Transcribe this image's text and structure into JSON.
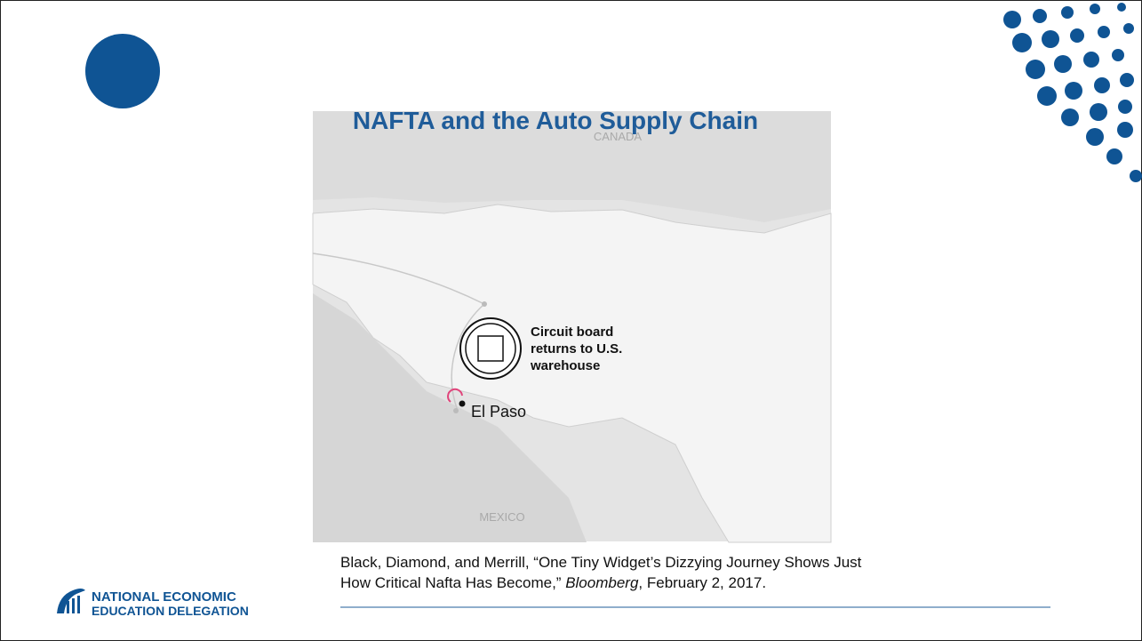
{
  "title": "NAFTA and the Auto Supply Chain",
  "map": {
    "canada": "CANADA",
    "mexico": "MEXICO",
    "el_paso": "El Paso",
    "callout": [
      "Circuit board",
      "returns to U.S.",
      "warehouse"
    ]
  },
  "citation": {
    "line1": "Black, Diamond, and Merrill, “One Tiny Widget’s Dizzying Journey Shows Just",
    "line2_before": "How Critical Nafta Has Become,” ",
    "source": "Bloomberg",
    "line2_after": ", February 2, 2017."
  },
  "logo": {
    "line1": "NATIONAL ECONOMIC",
    "line2": "EDUCATION DELEGATION"
  }
}
